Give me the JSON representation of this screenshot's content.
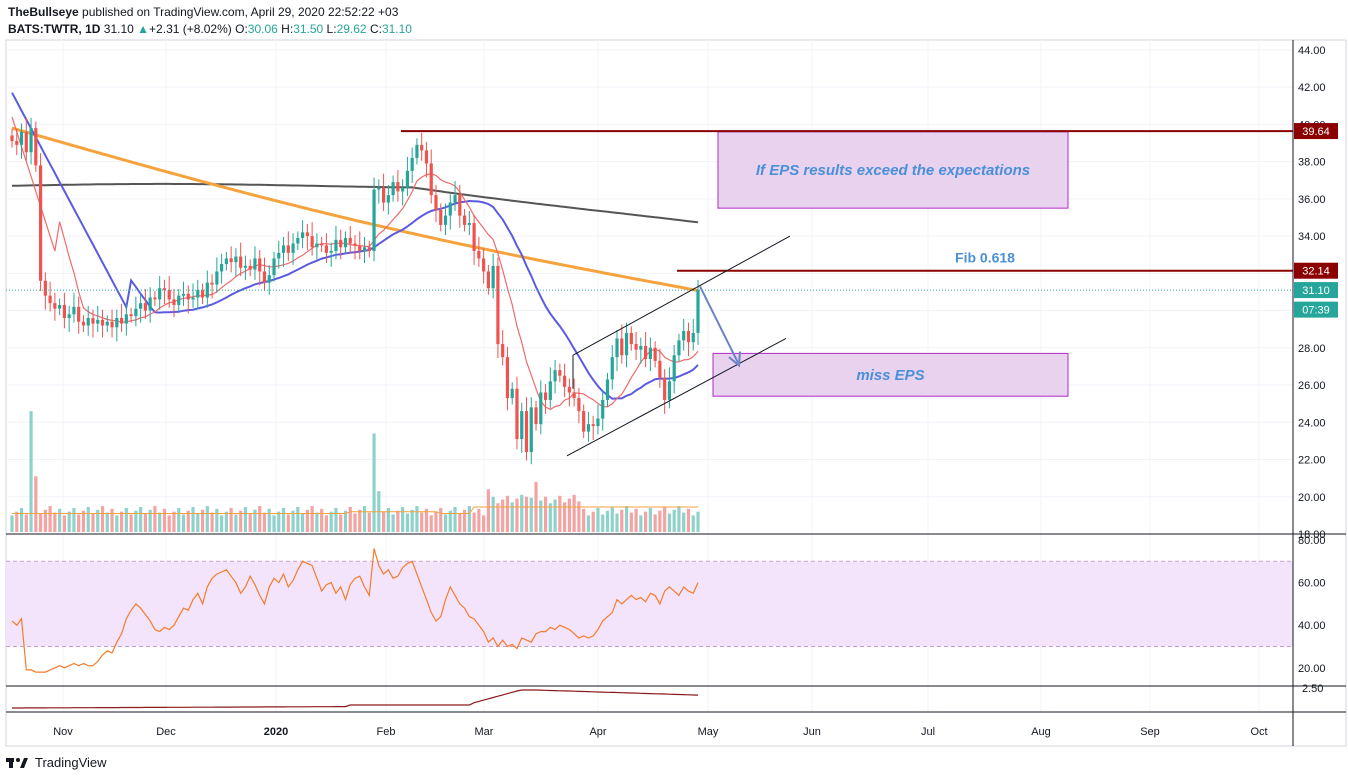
{
  "header": {
    "publisher": "TheBullseye",
    "published_text": "published on TradingView.com, April 29, 2020 22:52:22 +03",
    "symbol": "BATS:TWTR, 1D",
    "last": "31.10",
    "change": "+2.31 (+8.02%)",
    "o_label": "O:",
    "o_value": "30.06",
    "h_label": "H:",
    "h_value": "31.50",
    "l_label": "L:",
    "l_value": "29.62",
    "c_label": "C:",
    "c_value": "31.10"
  },
  "brand": {
    "name": "TradingView"
  },
  "colors": {
    "up": "#26a69a",
    "down": "#ef5350",
    "ma_fast": "#f06a6a",
    "ma_mid": "#5b5be0",
    "ma_slow": "#f5a33c",
    "ma_200": "#555555",
    "resistance": "#8b0000",
    "box_fill": "#e8d2ee",
    "box_border": "#b02cc4",
    "rsi": "#f47c2c",
    "rsi_band": "#f3e4fb"
  },
  "chart_data": {
    "type": "candlestick",
    "symbol": "BATS:TWTR",
    "interval": "1D",
    "ylim": [
      18,
      44
    ],
    "y_ticks": [
      "44.00",
      "42.00",
      "40.00",
      "38.00",
      "36.00",
      "34.00",
      "32.00",
      "30.00",
      "28.00",
      "26.00",
      "24.00",
      "22.00",
      "20.00",
      "18.00"
    ],
    "x_ticks": [
      "Nov",
      "Dec",
      "2020",
      "Feb",
      "Mar",
      "Apr",
      "May",
      "Jun",
      "Jul",
      "Aug",
      "Sep",
      "Oct"
    ],
    "price_badges": [
      {
        "label": "39.64",
        "value": 39.64,
        "color": "#8b0000"
      },
      {
        "label": "32.14",
        "value": 32.14,
        "color": "#8b0000"
      },
      {
        "label": "31.10",
        "value": 31.1,
        "color": "#26a69a"
      },
      {
        "label": "07:39",
        "value": 30.05,
        "color": "#26a69a"
      }
    ],
    "close_path": [
      39.1,
      38.9,
      39.6,
      38.5,
      39.8,
      37.8,
      31.6,
      30.8,
      30.4,
      30.1,
      30.3,
      29.6,
      29.8,
      30.2,
      29.4,
      29.2,
      29.6,
      29.3,
      29.5,
      29.2,
      29.4,
      29.1,
      29.6,
      29.3,
      29.8,
      29.7,
      30.1,
      30.4,
      30.0,
      30.7,
      30.6,
      31.2,
      31.1,
      30.6,
      30.3,
      30.8,
      30.9,
      30.6,
      30.7,
      31.1,
      30.7,
      31.5,
      31.4,
      32.1,
      32.5,
      32.8,
      32.6,
      32.9,
      32.3,
      32.4,
      32.2,
      32.8,
      32.1,
      31.5,
      31.9,
      32.8,
      33.1,
      33.5,
      33.1,
      33.6,
      33.9,
      34.2,
      34.0,
      33.4,
      33.6,
      33.5,
      33.1,
      33.2,
      33.8,
      33.4,
      33.9,
      33.6,
      33.5,
      33.2,
      33.4,
      33.2,
      36.5,
      36.6,
      35.8,
      36.2,
      36.9,
      36.4,
      36.6,
      37.5,
      38.2,
      38.9,
      38.6,
      37.9,
      36.2,
      35.4,
      34.6,
      35.1,
      35.8,
      36.2,
      35.1,
      34.6,
      34.7,
      33.2,
      32.8,
      32.1,
      31.2,
      32.4,
      28.2,
      27.5,
      25.3,
      25.8,
      23.1,
      24.6,
      22.4,
      24.8,
      23.9,
      25.6,
      25.2,
      26.2,
      26.8,
      26.5,
      25.9,
      25.6,
      25.3,
      24.6,
      23.5,
      23.9,
      23.8,
      24.2,
      25.2,
      26.3,
      27.5,
      28.5,
      27.6,
      28.8,
      28.2,
      27.9,
      28.1,
      27.4,
      28.0,
      27.3,
      26.4,
      25.2,
      26.2,
      27.6,
      28.4,
      28.9,
      28.3,
      28.8,
      31.1
    ],
    "volume_peak_values": {
      "left_spike": 24.6,
      "feb_spike": 23.4,
      "typical": 19.4
    },
    "series": [
      {
        "name": "",
        "type": "line",
        "role": "ma-200"
      },
      {
        "name": "",
        "type": "line",
        "role": "ma-100"
      },
      {
        "name": "",
        "type": "line",
        "role": "ma-50"
      },
      {
        "name": "",
        "type": "line",
        "role": "ma-20"
      }
    ],
    "annotations": [
      {
        "kind": "hline",
        "value": 39.64,
        "label": ""
      },
      {
        "kind": "hline",
        "value": 32.14,
        "label": "Fib 0.618"
      },
      {
        "kind": "box",
        "label": "If EPS results exceed the expectations",
        "y_range": [
          35.5,
          39.6
        ]
      },
      {
        "kind": "box",
        "label": "miss EPS",
        "y_range": [
          25.4,
          27.7
        ]
      },
      {
        "kind": "channel",
        "label": ""
      },
      {
        "kind": "arrow",
        "label": ""
      }
    ],
    "rsi": {
      "ylim": [
        10,
        80
      ],
      "ticks": [
        "80.00",
        "60.00",
        "40.00",
        "20.00"
      ],
      "band": [
        30,
        70
      ],
      "values": [
        42,
        40,
        43,
        19,
        19,
        18,
        18,
        18,
        19,
        20,
        21,
        20,
        21,
        22,
        21,
        22,
        21,
        21,
        23,
        26,
        28,
        27,
        32,
        36,
        43,
        47,
        50,
        48,
        45,
        42,
        38,
        37,
        39,
        38,
        40,
        44,
        48,
        47,
        52,
        55,
        50,
        58,
        62,
        64,
        65,
        66,
        63,
        60,
        55,
        58,
        63,
        59,
        54,
        50,
        58,
        62,
        60,
        64,
        58,
        61,
        66,
        70,
        69,
        68,
        62,
        56,
        59,
        60,
        55,
        58,
        52,
        59,
        62,
        63,
        58,
        54,
        76,
        68,
        64,
        66,
        62,
        63,
        67,
        69,
        70,
        64,
        58,
        52,
        46,
        42,
        44,
        52,
        58,
        54,
        50,
        48,
        44,
        43,
        40,
        37,
        32,
        34,
        30,
        33,
        30,
        31,
        29,
        34,
        33,
        32,
        36,
        37,
        37,
        39,
        38,
        40,
        39,
        38,
        36,
        34,
        35,
        34,
        35,
        38,
        42,
        44,
        46,
        52,
        50,
        52,
        54,
        52,
        53,
        51,
        55,
        54,
        50,
        56,
        58,
        56,
        54,
        58,
        56,
        55,
        60
      ]
    },
    "lower_indicator": {
      "tick": "2.50"
    }
  }
}
